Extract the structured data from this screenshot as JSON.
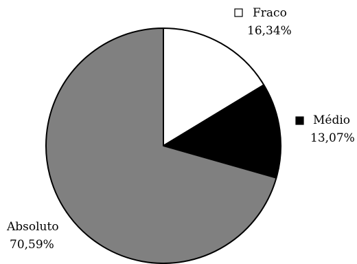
{
  "chart_data": {
    "type": "pie",
    "title": "",
    "slices": [
      {
        "label": "Fraco",
        "value": 16.34,
        "display": "16,34%",
        "color": "#ffffff"
      },
      {
        "label": "Médio",
        "value": 13.07,
        "display": "13,07%",
        "color": "#000000"
      },
      {
        "label": "Absoluto",
        "value": 70.59,
        "display": "70,59%",
        "color": "#808080"
      }
    ],
    "start_angle_deg": 0,
    "direction": "clockwise",
    "outline_color": "#000000"
  }
}
